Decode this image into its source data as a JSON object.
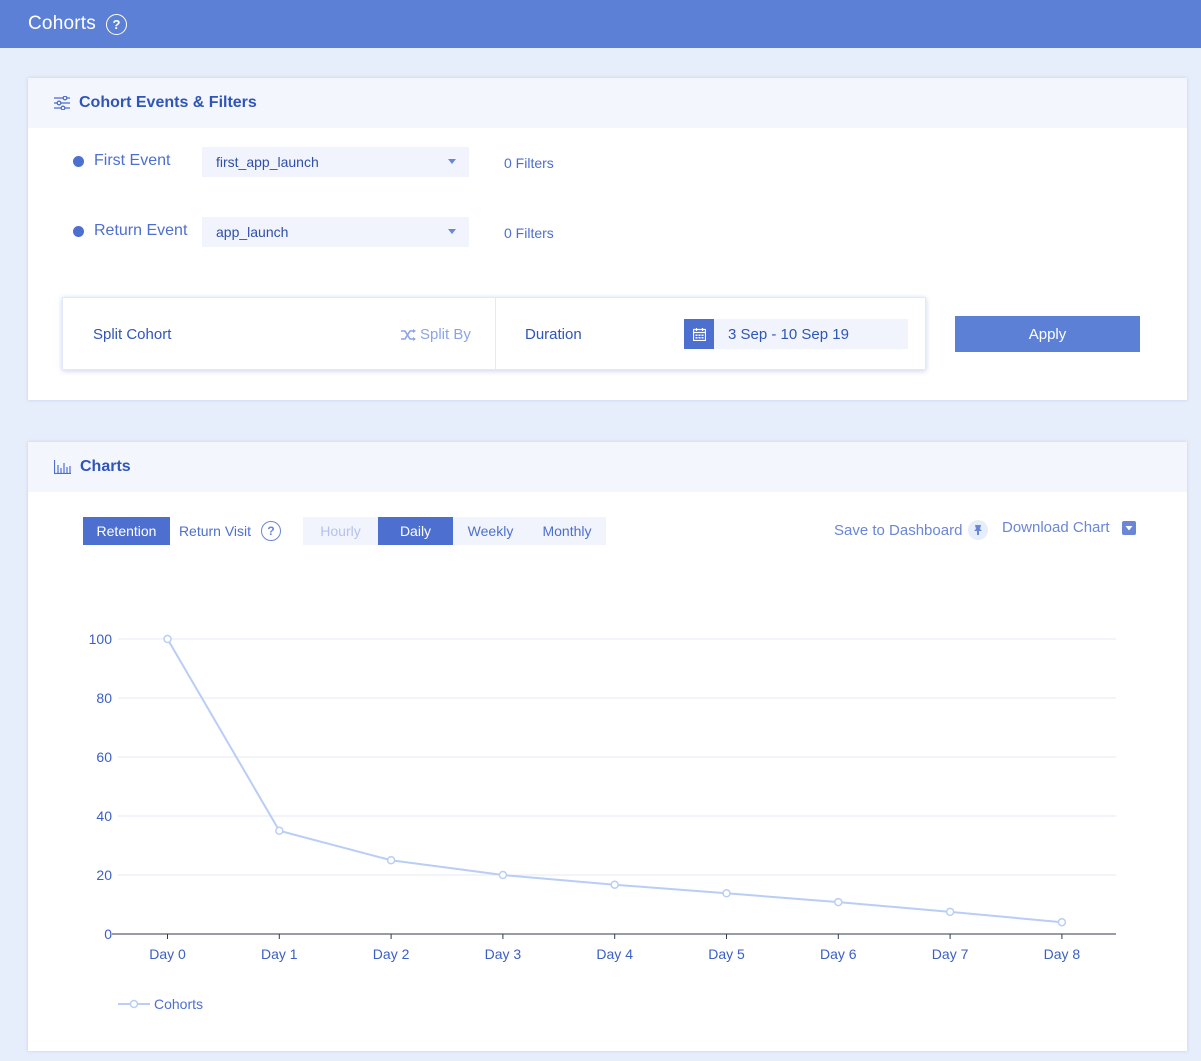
{
  "header": {
    "title": "Cohorts",
    "help": "?"
  },
  "filters_panel": {
    "title": "Cohort Events & Filters",
    "first_event": {
      "label": "First Event",
      "value": "first_app_launch",
      "filters": "0 Filters"
    },
    "return_event": {
      "label": "Return Event",
      "value": "app_launch",
      "filters": "0 Filters"
    },
    "split_cohort": {
      "label": "Split Cohort",
      "split_by": "Split By"
    },
    "duration": {
      "label": "Duration",
      "value": "3 Sep - 10 Sep 19"
    },
    "apply_label": "Apply"
  },
  "charts_panel": {
    "title": "Charts",
    "metric_tabs": [
      {
        "label": "Retention",
        "active": true
      },
      {
        "label": "Return Visit",
        "active": false
      }
    ],
    "metric_help": "?",
    "period_tabs": [
      {
        "label": "Hourly",
        "active": false,
        "disabled": true
      },
      {
        "label": "Daily",
        "active": true,
        "disabled": false
      },
      {
        "label": "Weekly",
        "active": false,
        "disabled": false
      },
      {
        "label": "Monthly",
        "active": false,
        "disabled": false
      }
    ],
    "save_to_dashboard": "Save to Dashboard",
    "download_chart": "Download Chart"
  },
  "colors": {
    "accent": "#4d6fcf",
    "header_bg": "#5b80d6",
    "series_line": "#b9cdf5"
  },
  "chart_data": {
    "type": "line",
    "x": [
      "Day 0",
      "Day 1",
      "Day 2",
      "Day 3",
      "Day 4",
      "Day 5",
      "Day 6",
      "Day 7",
      "Day 8"
    ],
    "series": [
      {
        "name": "Cohorts",
        "values": [
          100,
          35,
          25,
          20,
          16.7,
          13.8,
          10.8,
          7.5,
          4
        ]
      }
    ],
    "yticks": [
      0,
      20,
      40,
      60,
      80,
      100
    ],
    "ylim": [
      0,
      100
    ],
    "grid": true,
    "legend": "bottom-left"
  }
}
